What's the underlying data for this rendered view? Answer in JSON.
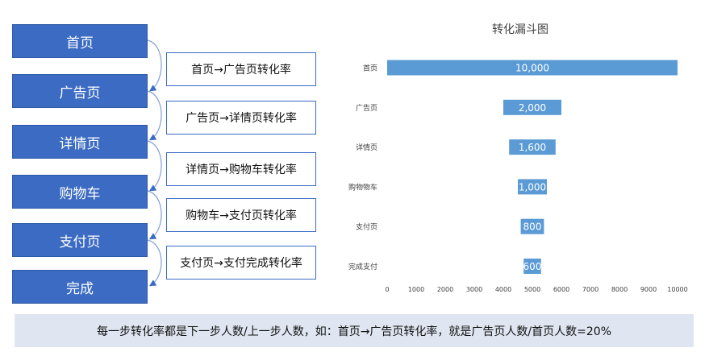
{
  "steps": [
    "首页",
    "广告页",
    "详情页",
    "购物车",
    "支付页",
    "完成"
  ],
  "rates": [
    "首页→广告页转化率",
    "广告页→详情页转化率",
    "详情页→购物车转化率",
    "购物车→支付页转化率",
    "支付页→支付完成转化率"
  ],
  "note": "每一步转化率都是下一步人数/上一步人数，如：首页→广告页转化率，就是广告页人数/首页人数=20%",
  "colors": {
    "box": "#3b6bc2",
    "bar": "#5b9bd5",
    "note_bg": "#dfe6f1"
  },
  "chart_data": {
    "type": "bar",
    "orientation": "horizontal",
    "layout": "funnel (bars centered)",
    "title": "转化漏斗图",
    "categories": [
      "首页",
      "广告页",
      "详情页",
      "购物物车",
      "支付页",
      "完成支付"
    ],
    "values": [
      10000,
      2000,
      1600,
      1000,
      800,
      600
    ],
    "data_labels": [
      "10,000",
      "2,000",
      "1,600",
      "1,000",
      "800",
      "600"
    ],
    "xlim": [
      0,
      10000
    ],
    "x_ticks": [
      0,
      1000,
      2000,
      3000,
      4000,
      5000,
      6000,
      7000,
      8000,
      9000,
      10000
    ],
    "grid": false,
    "legend": "none"
  }
}
